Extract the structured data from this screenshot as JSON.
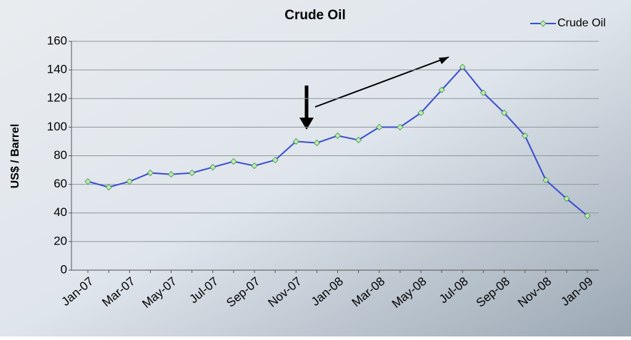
{
  "chart_data": {
    "type": "line",
    "title": "Crude Oil",
    "y_label": "US$ / Barrel",
    "categories": [
      "Jan-07",
      null,
      "Mar-07",
      null,
      "May-07",
      null,
      "Jul-07",
      null,
      "Sep-07",
      null,
      "Nov-07",
      null,
      "Jan-08",
      null,
      "Mar-08",
      null,
      "May-08",
      null,
      "Jul-08",
      null,
      "Sep-08",
      null,
      "Nov-08",
      null,
      "Jan-09"
    ],
    "series": [
      {
        "name": "Crude Oil",
        "color": "#3a4fd0",
        "values": [
          62,
          58,
          62,
          68,
          67,
          68,
          72,
          76,
          73,
          77,
          90,
          89,
          94,
          91,
          100,
          100,
          110,
          126,
          142,
          124,
          110,
          94,
          63,
          50,
          38
        ]
      }
    ],
    "ylim": [
      0,
      160
    ],
    "yticks": [
      0,
      20,
      40,
      60,
      80,
      100,
      120,
      140,
      160
    ],
    "grid": true,
    "legend": "top-right"
  }
}
